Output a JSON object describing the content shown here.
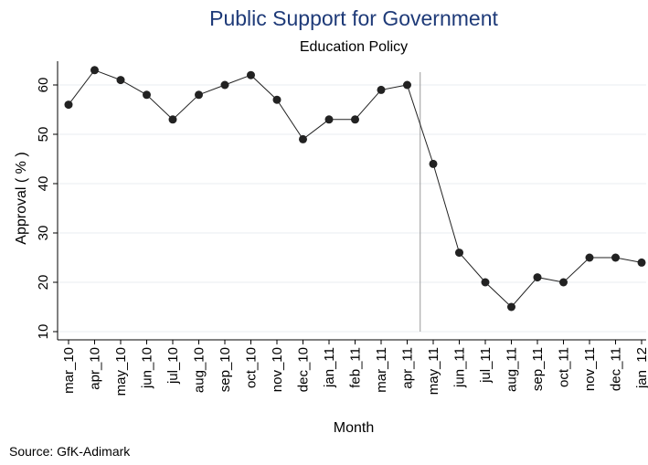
{
  "chart_data": {
    "type": "line",
    "title": "Public Support for Government",
    "subtitle": "Education Policy",
    "xlabel": "Month",
    "ylabel": "Approval ( % )",
    "source": "Source: GfK-Adimark",
    "categories": [
      "mar_10",
      "apr_10",
      "may_10",
      "jun_10",
      "jul_10",
      "aug_10",
      "sep_10",
      "oct_10",
      "nov_10",
      "dec_10",
      "jan_11",
      "feb_11",
      "mar_11",
      "apr_11",
      "may_11",
      "jun_11",
      "jul_11",
      "aug_11",
      "sep_11",
      "oct_11",
      "nov_11",
      "dec_11",
      "jan_12"
    ],
    "series": [
      {
        "values": [
          56,
          63,
          61,
          58,
          53,
          58,
          60,
          62,
          57,
          49,
          53,
          53,
          59,
          60,
          44,
          26,
          20,
          15,
          21,
          20,
          25,
          25,
          24
        ]
      }
    ],
    "ylim": [
      10,
      64
    ],
    "yticks": [
      10,
      20,
      30,
      40,
      50,
      60
    ],
    "grid": true,
    "vertical_reference_after": "apr_11",
    "colors": {
      "title": "#1e3a78",
      "line": "#222222",
      "marker": "#222222",
      "grid": "#e8eef2",
      "reference": "#999999"
    }
  }
}
